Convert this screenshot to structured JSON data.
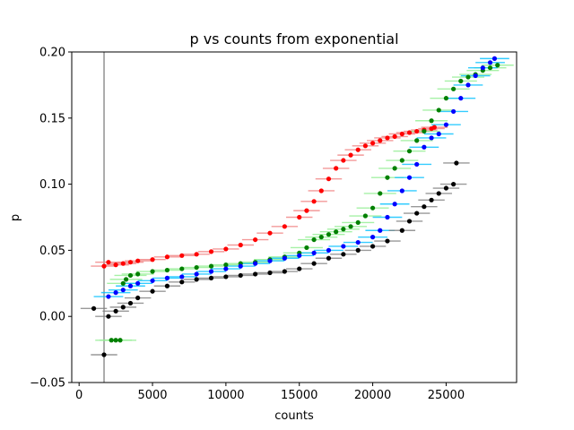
{
  "chart_data": {
    "type": "scatter",
    "title": "p vs counts from exponential",
    "xlabel": "counts",
    "ylabel": "p",
    "xlim": [
      -500,
      29800
    ],
    "ylim": [
      -0.05,
      0.2
    ],
    "xticks": [
      0,
      5000,
      10000,
      15000,
      20000,
      25000
    ],
    "xtick_labels": [
      "0",
      "5000",
      "10000",
      "15000",
      "20000",
      "25000"
    ],
    "yticks": [
      -0.05,
      0.0,
      0.05,
      0.1,
      0.15,
      0.2
    ],
    "ytick_labels": [
      "−0.05",
      "0.00",
      "0.05",
      "0.10",
      "0.15",
      "0.20"
    ],
    "vline_x": 1700,
    "grid": false,
    "error_bars": "horizontal",
    "series": [
      {
        "color": "#ff0000",
        "errcolor": "#f08080",
        "points": [
          [
            1700,
            0.038
          ],
          [
            2000,
            0.041
          ],
          [
            2500,
            0.039
          ],
          [
            3000,
            0.04
          ],
          [
            3500,
            0.041
          ],
          [
            4000,
            0.042
          ],
          [
            5000,
            0.043
          ],
          [
            6000,
            0.045
          ],
          [
            7000,
            0.046
          ],
          [
            8000,
            0.047
          ],
          [
            9000,
            0.049
          ],
          [
            10000,
            0.051
          ],
          [
            11000,
            0.054
          ],
          [
            12000,
            0.058
          ],
          [
            13000,
            0.063
          ],
          [
            14000,
            0.068
          ],
          [
            15000,
            0.075
          ],
          [
            15500,
            0.08
          ],
          [
            16000,
            0.087
          ],
          [
            16500,
            0.095
          ],
          [
            17000,
            0.104
          ],
          [
            17500,
            0.112
          ],
          [
            18000,
            0.118
          ],
          [
            18500,
            0.122
          ],
          [
            19000,
            0.126
          ],
          [
            19500,
            0.129
          ],
          [
            20000,
            0.131
          ],
          [
            20500,
            0.133
          ],
          [
            21000,
            0.135
          ],
          [
            21500,
            0.136
          ],
          [
            22000,
            0.138
          ],
          [
            22500,
            0.139
          ],
          [
            23000,
            0.14
          ],
          [
            23500,
            0.141
          ],
          [
            24000,
            0.142
          ],
          [
            24200,
            0.143
          ]
        ],
        "err": 900
      },
      {
        "color": "#008000",
        "errcolor": "#90ee90",
        "points": [
          [
            2200,
            -0.018
          ],
          [
            2500,
            -0.018
          ],
          [
            2800,
            -0.018
          ],
          [
            3000,
            0.025
          ],
          [
            3200,
            0.028
          ],
          [
            3500,
            0.031
          ],
          [
            4000,
            0.032
          ],
          [
            5000,
            0.034
          ],
          [
            6000,
            0.035
          ],
          [
            7000,
            0.036
          ],
          [
            8000,
            0.037
          ],
          [
            9000,
            0.038
          ],
          [
            10000,
            0.039
          ],
          [
            11000,
            0.04
          ],
          [
            12000,
            0.041
          ],
          [
            13000,
            0.043
          ],
          [
            14000,
            0.045
          ],
          [
            15000,
            0.048
          ],
          [
            15500,
            0.052
          ],
          [
            16000,
            0.058
          ],
          [
            16500,
            0.06
          ],
          [
            17000,
            0.062
          ],
          [
            17500,
            0.064
          ],
          [
            18000,
            0.066
          ],
          [
            18500,
            0.068
          ],
          [
            19000,
            0.071
          ],
          [
            19500,
            0.076
          ],
          [
            20000,
            0.082
          ],
          [
            20500,
            0.093
          ],
          [
            21000,
            0.105
          ],
          [
            21500,
            0.112
          ],
          [
            22000,
            0.118
          ],
          [
            22500,
            0.125
          ],
          [
            23000,
            0.133
          ],
          [
            23500,
            0.14
          ],
          [
            24000,
            0.148
          ],
          [
            24500,
            0.156
          ],
          [
            25000,
            0.165
          ],
          [
            25500,
            0.172
          ],
          [
            26000,
            0.178
          ],
          [
            26500,
            0.181
          ],
          [
            27000,
            0.183
          ],
          [
            27500,
            0.186
          ],
          [
            28000,
            0.188
          ],
          [
            28500,
            0.19
          ]
        ],
        "err": 1100
      },
      {
        "color": "#0000ff",
        "errcolor": "#00bfff",
        "points": [
          [
            2000,
            0.015
          ],
          [
            2500,
            0.018
          ],
          [
            3000,
            0.02
          ],
          [
            3500,
            0.023
          ],
          [
            4000,
            0.025
          ],
          [
            5000,
            0.027
          ],
          [
            6000,
            0.029
          ],
          [
            7000,
            0.03
          ],
          [
            8000,
            0.032
          ],
          [
            9000,
            0.034
          ],
          [
            10000,
            0.036
          ],
          [
            11000,
            0.038
          ],
          [
            12000,
            0.04
          ],
          [
            13000,
            0.042
          ],
          [
            14000,
            0.044
          ],
          [
            15000,
            0.046
          ],
          [
            16000,
            0.048
          ],
          [
            17000,
            0.05
          ],
          [
            18000,
            0.053
          ],
          [
            19000,
            0.056
          ],
          [
            20000,
            0.06
          ],
          [
            20500,
            0.065
          ],
          [
            21000,
            0.075
          ],
          [
            21500,
            0.085
          ],
          [
            22000,
            0.095
          ],
          [
            22500,
            0.105
          ],
          [
            23000,
            0.115
          ],
          [
            23500,
            0.128
          ],
          [
            24000,
            0.135
          ],
          [
            24500,
            0.138
          ],
          [
            25000,
            0.145
          ],
          [
            25500,
            0.155
          ],
          [
            26000,
            0.165
          ],
          [
            26500,
            0.175
          ],
          [
            27000,
            0.182
          ],
          [
            27500,
            0.188
          ],
          [
            28000,
            0.192
          ],
          [
            28300,
            0.195
          ]
        ],
        "err": 1000
      },
      {
        "color": "#000000",
        "errcolor": "#808080",
        "points": [
          [
            1000,
            0.006
          ],
          [
            1700,
            -0.029
          ],
          [
            2000,
            0.0
          ],
          [
            2500,
            0.004
          ],
          [
            3000,
            0.007
          ],
          [
            3500,
            0.01
          ],
          [
            4000,
            0.014
          ],
          [
            5000,
            0.019
          ],
          [
            6000,
            0.023
          ],
          [
            7000,
            0.026
          ],
          [
            8000,
            0.028
          ],
          [
            9000,
            0.029
          ],
          [
            10000,
            0.03
          ],
          [
            11000,
            0.031
          ],
          [
            12000,
            0.032
          ],
          [
            13000,
            0.033
          ],
          [
            14000,
            0.034
          ],
          [
            15000,
            0.036
          ],
          [
            16000,
            0.04
          ],
          [
            17000,
            0.044
          ],
          [
            18000,
            0.047
          ],
          [
            19000,
            0.05
          ],
          [
            20000,
            0.053
          ],
          [
            21000,
            0.057
          ],
          [
            22000,
            0.065
          ],
          [
            22500,
            0.072
          ],
          [
            23000,
            0.078
          ],
          [
            23500,
            0.083
          ],
          [
            24000,
            0.088
          ],
          [
            24500,
            0.093
          ],
          [
            25000,
            0.097
          ],
          [
            25500,
            0.1
          ],
          [
            25700,
            0.116
          ]
        ],
        "err": 900
      }
    ]
  }
}
